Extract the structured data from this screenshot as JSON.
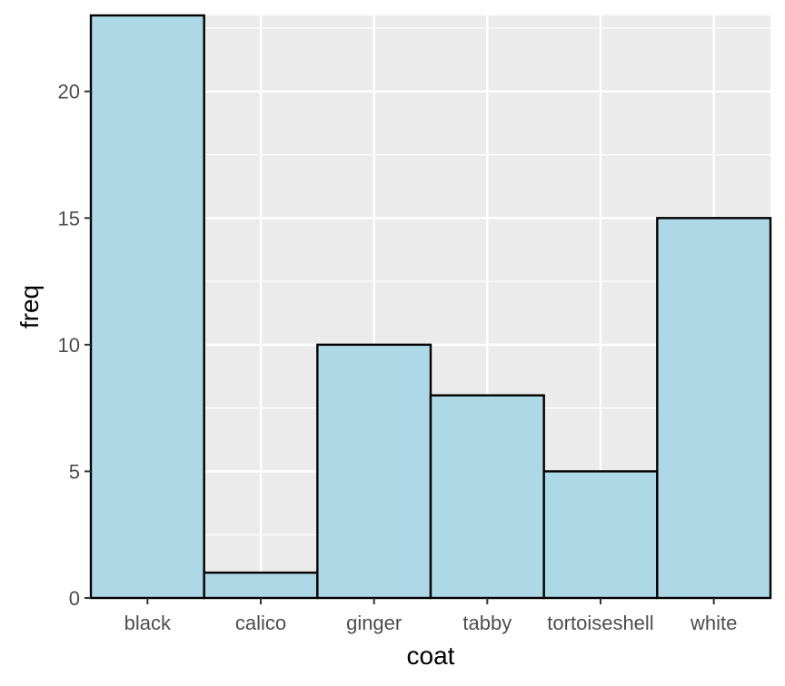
{
  "chart_data": {
    "type": "bar",
    "categories": [
      "black",
      "calico",
      "ginger",
      "tabby",
      "tortoiseshell",
      "white"
    ],
    "values": [
      23,
      1,
      10,
      8,
      5,
      15
    ],
    "title": "",
    "xlabel": "coat",
    "ylabel": "freq",
    "ylim": [
      0,
      23
    ],
    "yticks": [
      0,
      5,
      10,
      15,
      20
    ],
    "grid": true,
    "colors": {
      "panel": "#ebebeb",
      "grid": "#ffffff",
      "bar_fill": "#add8e6",
      "bar_stroke": "#000000",
      "tick": "#333333"
    }
  }
}
